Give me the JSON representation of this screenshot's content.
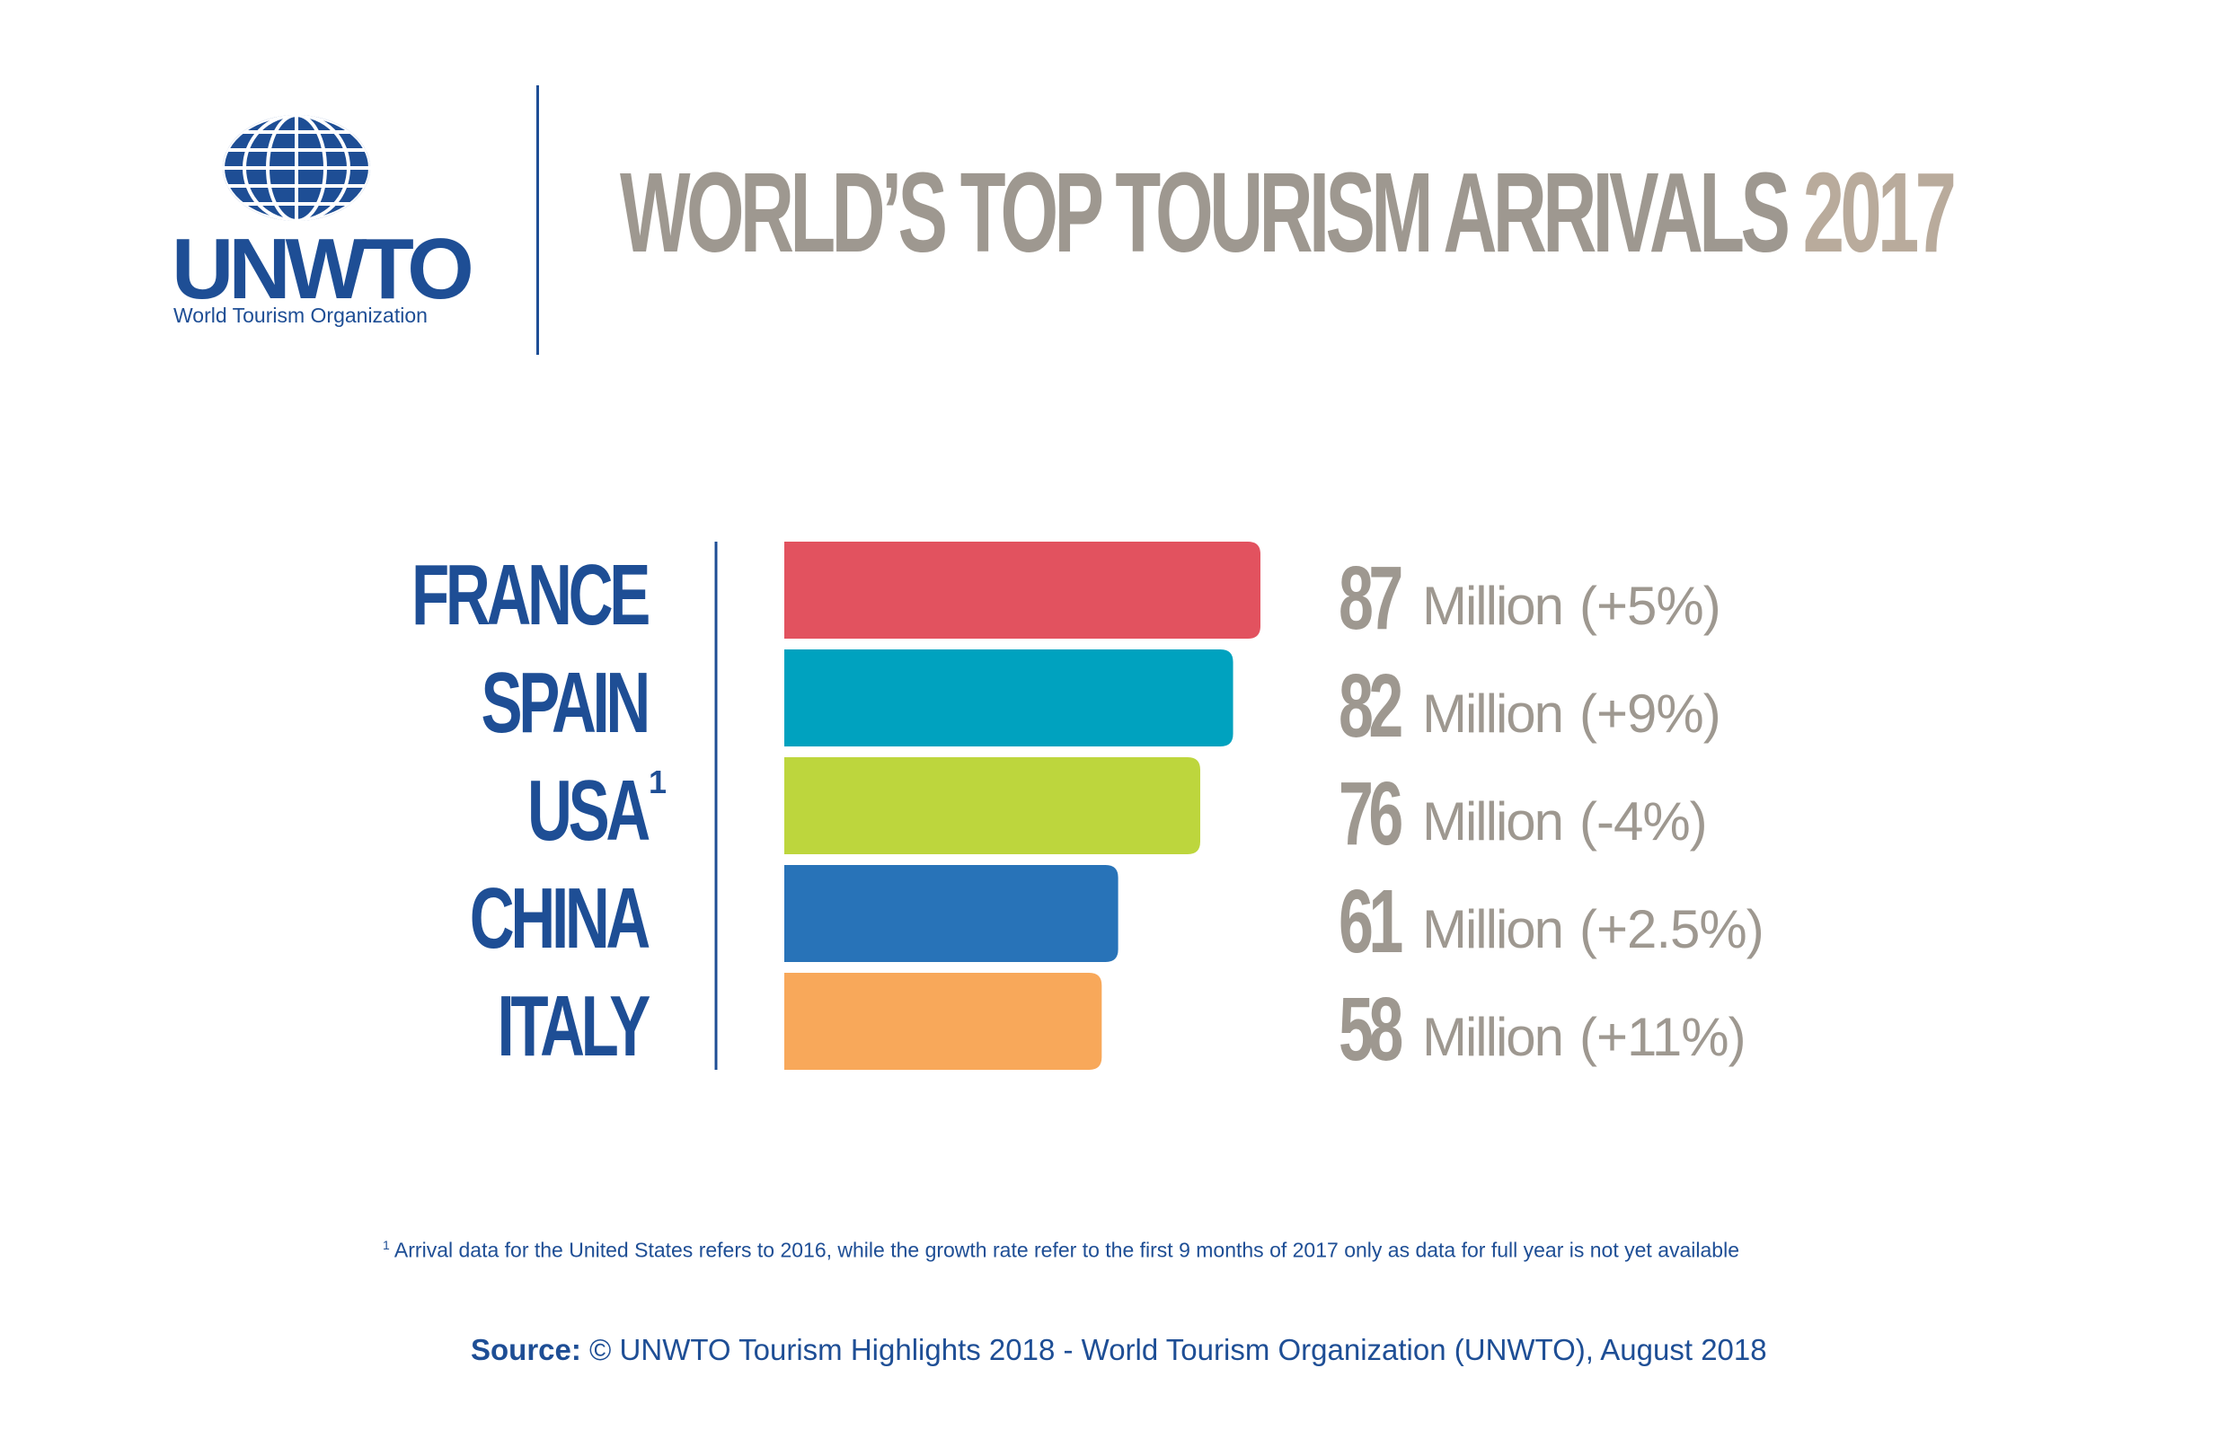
{
  "logo": {
    "name": "UNWTO",
    "subtitle": "World Tourism Organization"
  },
  "title": {
    "main": "WORLD’S TOP TOURISM ARRIVALS",
    "year": "2017"
  },
  "chart_data": {
    "type": "bar",
    "orientation": "horizontal",
    "title": "WORLD’S TOP TOURISM ARRIVALS 2017",
    "unit": "Million",
    "categories": [
      "FRANCE",
      "SPAIN",
      "USA",
      "CHINA",
      "ITALY"
    ],
    "category_notes": [
      "",
      "",
      "1",
      "",
      ""
    ],
    "values": [
      87,
      82,
      76,
      61,
      58
    ],
    "value_labels": [
      "87",
      "82",
      "76",
      "61",
      "58"
    ],
    "unit_label": "Million",
    "growth_labels": [
      "(+5%)",
      "(+9%)",
      "(-4%)",
      "(+2.5%)",
      "(+11%)"
    ],
    "colors": [
      "#e2525f",
      "#00a2bf",
      "#bdd63d",
      "#2873b8",
      "#f8a85a"
    ],
    "axis_color": "#1e4e95",
    "label_color": "#1e4e95",
    "value_color": "#9e9890",
    "legend": "none",
    "grid": false
  },
  "footnote": {
    "marker": "1",
    "text": "Arrival data for the United States refers to 2016, while the growth rate refer to the first 9 months of 2017 only as data for full year is not yet available"
  },
  "source": {
    "label": "Source:",
    "text": "© UNWTO Tourism Highlights 2018 - World Tourism Organization (UNWTO), August 2018"
  }
}
